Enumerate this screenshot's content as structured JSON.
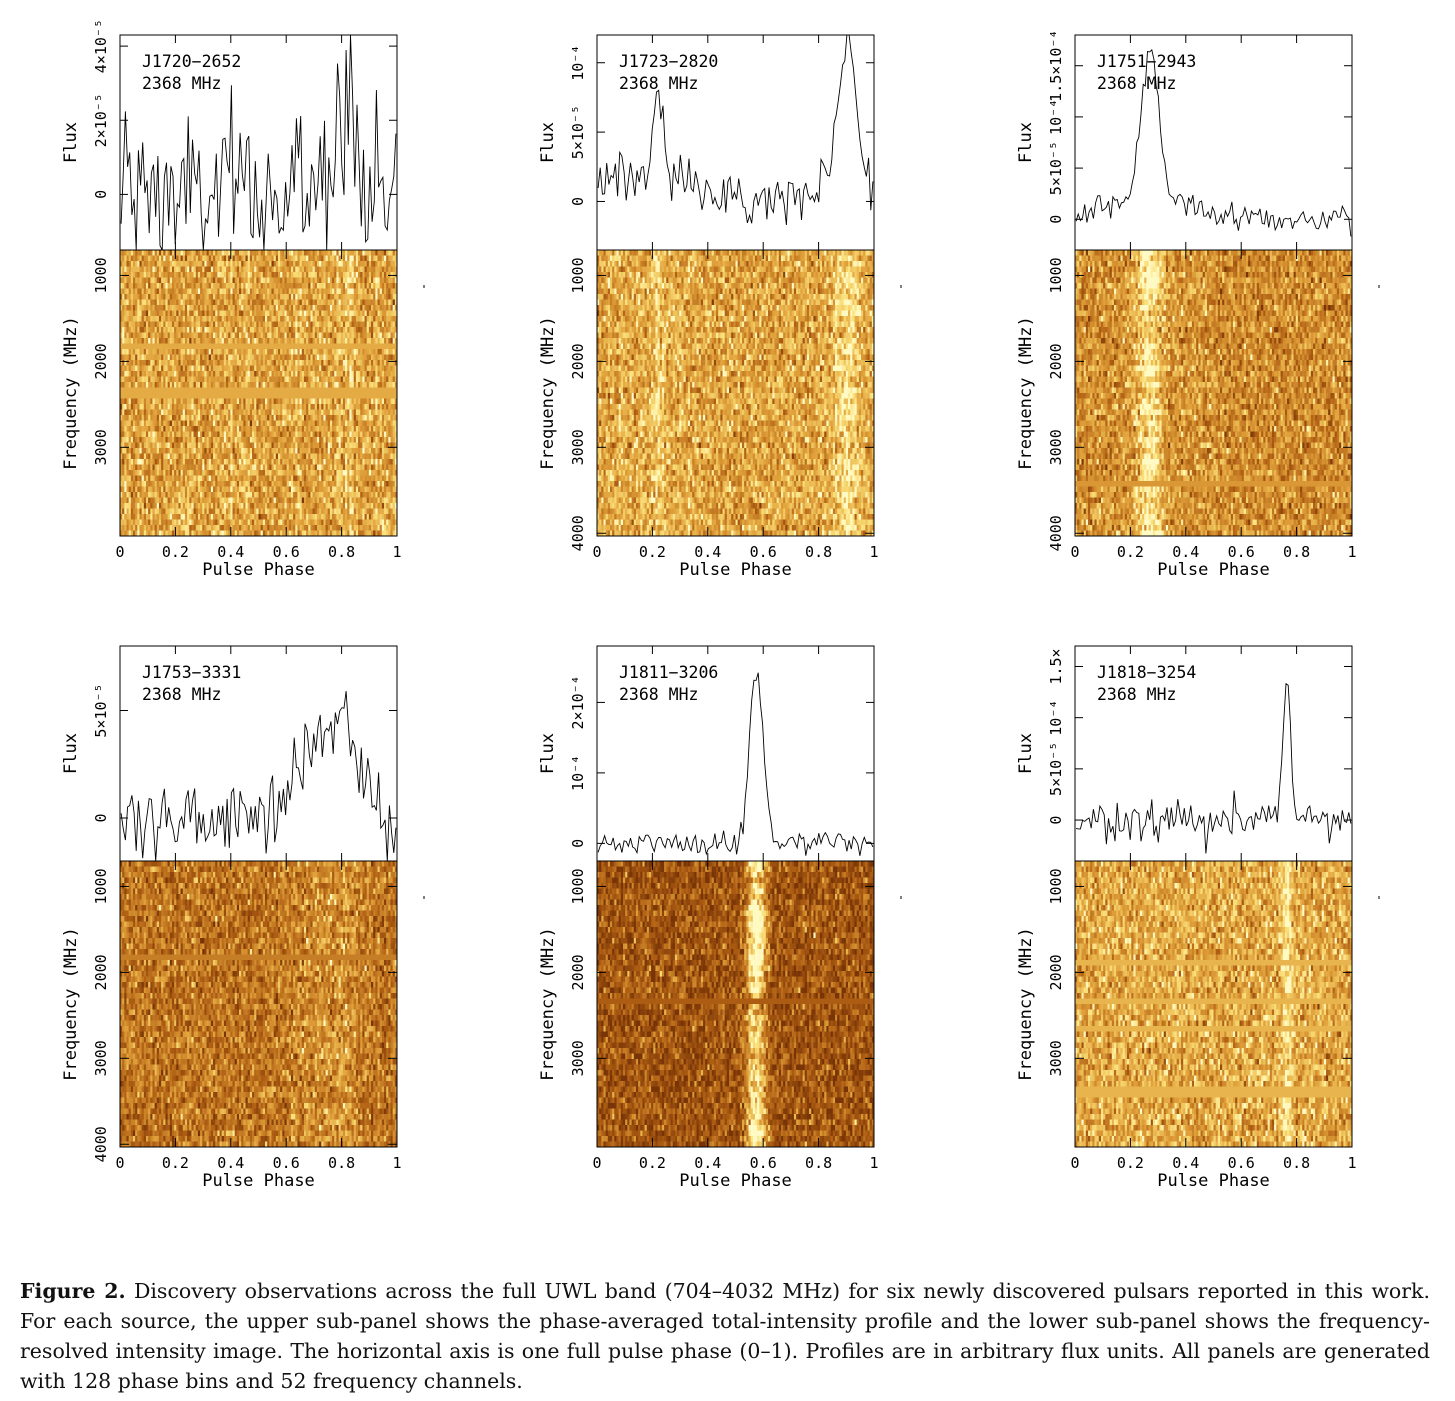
{
  "chart_data": [
    {
      "type": "line+heatmap",
      "source": "J1720−2652",
      "frequency_label": "2368 MHz",
      "profile_ylabel": "Flux",
      "profile_yticks": [
        {
          "v": 0,
          "label": "0"
        },
        {
          "v": 2e-05,
          "label": "2×10⁻⁵"
        },
        {
          "v": 4e-05,
          "label": "4×10⁻⁵"
        }
      ],
      "profile_ylim": [
        -1.5e-05,
        4.3e-05
      ],
      "profile_noise": 1.2e-05,
      "components": [
        {
          "center": 0.81,
          "width": 0.035,
          "amp": 3.3e-05
        }
      ],
      "image_ylabel": "Frequency (MHz)",
      "image_ylim": [
        704,
        4032
      ],
      "image_yticks": [
        "1000",
        "2000",
        "3000"
      ],
      "xlabel": "Pulse Phase",
      "xticks": [
        "0",
        "0.2",
        "0.4",
        "0.6",
        "0.8",
        "1"
      ],
      "image_brightness": 0.58,
      "image_signal": 0.25,
      "masked_bands_mhz": [
        [
          1790,
          1840
        ],
        [
          2290,
          2440
        ]
      ]
    },
    {
      "type": "line+heatmap",
      "source": "J1723−2820",
      "frequency_label": "2368 MHz",
      "profile_ylabel": "Flux",
      "profile_yticks": [
        {
          "v": 0,
          "label": "0"
        },
        {
          "v": 5e-05,
          "label": "5×10⁻⁵"
        },
        {
          "v": 0.0001,
          "label": "10⁻⁴"
        }
      ],
      "profile_ylim": [
        -3.5e-05,
        0.00012
      ],
      "profile_noise": 9e-06,
      "components": [
        {
          "center": 0.22,
          "width": 0.015,
          "amp": 5.5e-05
        },
        {
          "center": 0.22,
          "width": 0.12,
          "amp": 2.2e-05
        },
        {
          "center": 0.9,
          "width": 0.03,
          "amp": 9.5e-05
        },
        {
          "center": 0.9,
          "width": 0.12,
          "amp": 2e-05
        }
      ],
      "image_ylabel": "Frequency (MHz)",
      "image_ylim": [
        704,
        4032
      ],
      "image_yticks": [
        "1000",
        "2000",
        "3000",
        "4000"
      ],
      "xlabel": "Pulse Phase",
      "xticks": [
        "0",
        "0.2",
        "0.4",
        "0.6",
        "0.8",
        "1"
      ],
      "image_brightness": 0.6,
      "image_signal": 0.3,
      "masked_bands_mhz": []
    },
    {
      "type": "line+heatmap",
      "source": "J1751−2943",
      "frequency_label": "2368 MHz",
      "profile_ylabel": "Flux",
      "profile_yticks": [
        {
          "v": 0,
          "label": "0"
        },
        {
          "v": 5e-05,
          "label": "5×10⁻⁵"
        },
        {
          "v": 0.0001,
          "label": "10⁻⁴"
        },
        {
          "v": 0.00015,
          "label": "1.5×10⁻⁴"
        }
      ],
      "profile_ylim": [
        -3e-05,
        0.00018
      ],
      "profile_noise": 7e-06,
      "components": [
        {
          "center": 0.27,
          "width": 0.03,
          "amp": 0.000145
        },
        {
          "center": 0.3,
          "width": 0.13,
          "amp": 2.5e-05
        }
      ],
      "image_ylabel": "Frequency (MHz)",
      "image_ylim": [
        704,
        4032
      ],
      "image_yticks": [
        "1000",
        "2000",
        "3000",
        "4000"
      ],
      "xlabel": "Pulse Phase",
      "xticks": [
        "0",
        "0.2",
        "0.4",
        "0.6",
        "0.8",
        "1"
      ],
      "image_brightness": 0.5,
      "image_signal": 0.45,
      "masked_bands_mhz": [
        [
          3380,
          3430
        ]
      ]
    },
    {
      "type": "line+heatmap",
      "source": "J1753−3331",
      "frequency_label": "2368 MHz",
      "profile_ylabel": "Flux",
      "profile_yticks": [
        {
          "v": 0,
          "label": "0"
        },
        {
          "v": 5e-05,
          "label": "5×10⁻⁵"
        }
      ],
      "profile_ylim": [
        -2e-05,
        8e-05
      ],
      "profile_noise": 9e-06,
      "components": [
        {
          "center": 0.8,
          "width": 0.06,
          "amp": 4.5e-05
        },
        {
          "center": 0.68,
          "width": 0.05,
          "amp": 2.5e-05
        }
      ],
      "image_ylabel": "Frequency (MHz)",
      "image_ylim": [
        704,
        4032
      ],
      "image_yticks": [
        "1000",
        "2000",
        "3000",
        "4000"
      ],
      "xlabel": "Pulse Phase",
      "xticks": [
        "0",
        "0.2",
        "0.4",
        "0.6",
        "0.8",
        "1"
      ],
      "image_brightness": 0.38,
      "image_signal": 0.2,
      "masked_bands_mhz": [
        [
          1790,
          1840
        ]
      ]
    },
    {
      "type": "line+heatmap",
      "source": "J1811−3206",
      "frequency_label": "2368 MHz",
      "profile_ylabel": "Flux",
      "profile_yticks": [
        {
          "v": 0,
          "label": "0"
        },
        {
          "v": 0.0001,
          "label": "10⁻⁴"
        },
        {
          "v": 0.0002,
          "label": "2×10⁻⁴"
        }
      ],
      "profile_ylim": [
        -2.5e-05,
        0.00028
      ],
      "profile_noise": 8e-06,
      "components": [
        {
          "center": 0.575,
          "width": 0.025,
          "amp": 0.000245
        }
      ],
      "image_ylabel": "Frequency (MHz)",
      "image_ylim": [
        704,
        4032
      ],
      "image_yticks": [
        "1000",
        "2000",
        "3000"
      ],
      "xlabel": "Pulse Phase",
      "xticks": [
        "0",
        "0.2",
        "0.4",
        "0.6",
        "0.8",
        "1"
      ],
      "image_brightness": 0.22,
      "image_signal": 0.75,
      "masked_bands_mhz": [
        [
          2290,
          2380
        ]
      ]
    },
    {
      "type": "line+heatmap",
      "source": "J1818−3254",
      "frequency_label": "2368 MHz",
      "profile_ylabel": "Flux",
      "profile_yticks": [
        {
          "v": 0,
          "label": "0"
        },
        {
          "v": 5e-05,
          "label": "5×10⁻⁵"
        },
        {
          "v": 0.0001,
          "label": "10⁻⁴"
        },
        {
          "v": 0.00015,
          "label": "1.5×"
        }
      ],
      "profile_ylim": [
        -4e-05,
        0.00017
      ],
      "profile_noise": 1e-05,
      "components": [
        {
          "center": 0.765,
          "width": 0.013,
          "amp": 0.000145
        }
      ],
      "image_ylabel": "Frequency (MHz)",
      "image_ylim": [
        704,
        4032
      ],
      "image_yticks": [
        "1000",
        "2000",
        "3000"
      ],
      "xlabel": "Pulse Phase",
      "xticks": [
        "0",
        "0.2",
        "0.4",
        "0.6",
        "0.8",
        "1"
      ],
      "image_brightness": 0.62,
      "image_signal": 0.3,
      "masked_bands_mhz": [
        [
          1850,
          1900
        ],
        [
          2290,
          2380
        ],
        [
          2620,
          2670
        ],
        [
          3340,
          3430
        ]
      ]
    }
  ],
  "caption": {
    "label": "Figure 2.",
    "text": "Discovery observations across the full UWL band (704–4032 MHz) for six newly discovered pulsars reported in this work. For each source, the upper sub-panel shows the phase-averaged total-intensity profile and the lower sub-panel shows the frequency-resolved intensity image. The horizontal axis is one full pulse phase (0–1). Profiles are in arbitrary flux units. All panels are generated with 128 phase bins and 52 frequency channels."
  }
}
